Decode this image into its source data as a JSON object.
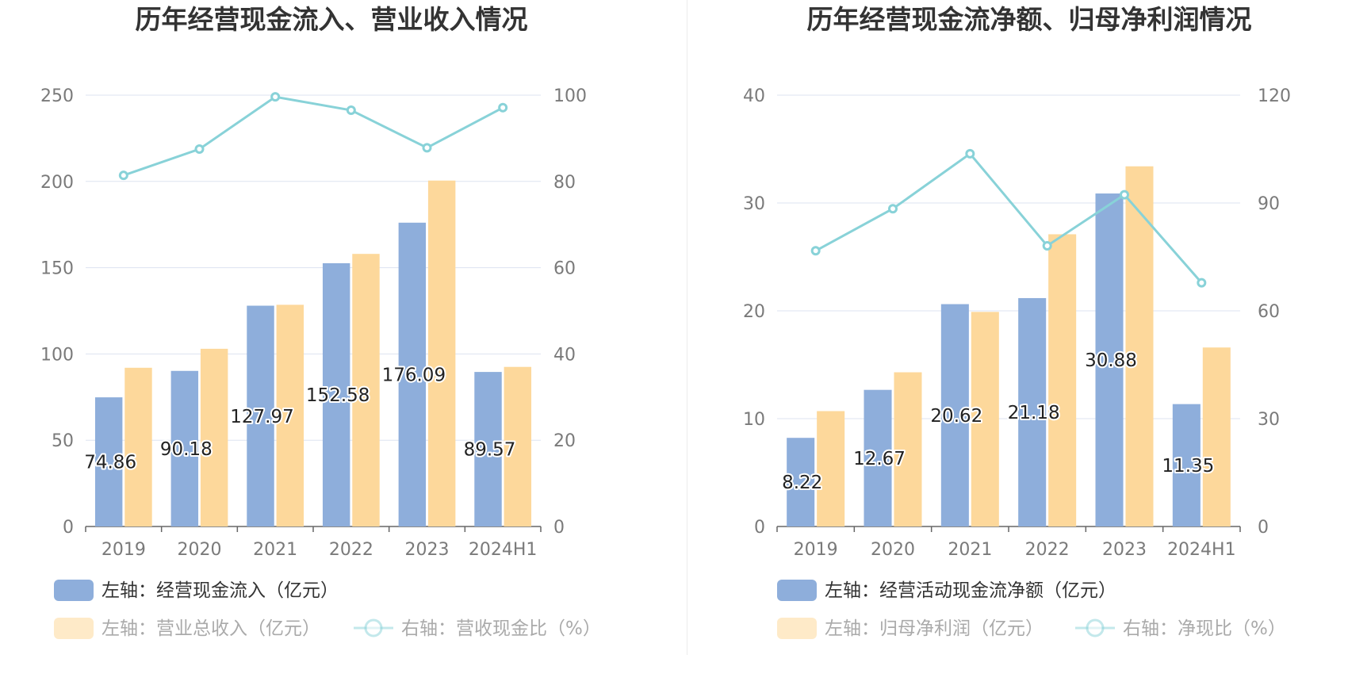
{
  "charts": [
    {
      "title": "历年经营现金流入、营业收入情况",
      "legend_labels": [
        "左轴：经营现金流入（亿元）",
        "左轴：营业总收入（亿元）",
        "右轴：营收现金比（%）"
      ]
    },
    {
      "title": "历年经营现金流净额、归母净利润情况",
      "legend_labels": [
        "左轴：经营活动现金流净额（亿元）",
        "左轴：归母净利润（亿元）",
        "右轴：净现比（%）"
      ]
    }
  ],
  "colors": {
    "bar1": "#8eaedb",
    "bar2": "#fdd89b",
    "line": "#88d2d8",
    "grid": "#dde3f0",
    "axis": "#666666"
  },
  "chart_data": [
    {
      "type": "bar",
      "title": "历年经营现金流入、营业收入情况",
      "categories": [
        "2019",
        "2020",
        "2021",
        "2022",
        "2023",
        "2024H1"
      ],
      "series": [
        {
          "name": "左轴：经营现金流入（亿元）",
          "type": "bar",
          "axis": "left",
          "values": [
            74.86,
            90.18,
            127.97,
            152.58,
            176.09,
            89.57
          ],
          "labels": [
            "74.86",
            "90.18",
            "127.97",
            "152.58",
            "176.09",
            "89.57"
          ]
        },
        {
          "name": "左轴：营业总收入（亿元）",
          "type": "bar",
          "axis": "left",
          "values": [
            92,
            103,
            128.5,
            158,
            200.5,
            92.5
          ]
        },
        {
          "name": "右轴：营收现金比（%）",
          "type": "line",
          "axis": "right",
          "values": [
            81.4,
            87.5,
            99.6,
            96.5,
            87.8,
            97.1
          ]
        }
      ],
      "left_axis": {
        "min": 0,
        "max": 250,
        "ticks": [
          "0",
          "50",
          "100",
          "150",
          "200",
          "250"
        ]
      },
      "right_axis": {
        "min": 0,
        "max": 100,
        "ticks": [
          "0",
          "20",
          "40",
          "60",
          "80",
          "100"
        ]
      },
      "grid": true,
      "legend_position": "bottom-left"
    },
    {
      "type": "bar",
      "title": "历年经营现金流净额、归母净利润情况",
      "categories": [
        "2019",
        "2020",
        "2021",
        "2022",
        "2023",
        "2024H1"
      ],
      "series": [
        {
          "name": "左轴：经营活动现金流净额（亿元）",
          "type": "bar",
          "axis": "left",
          "values": [
            8.22,
            12.67,
            20.62,
            21.18,
            30.88,
            11.35
          ],
          "labels": [
            "8.22",
            "12.67",
            "20.62",
            "21.18",
            "30.88",
            "11.35"
          ]
        },
        {
          "name": "左轴：归母净利润（亿元）",
          "type": "bar",
          "axis": "left",
          "values": [
            10.7,
            14.3,
            19.9,
            27.1,
            33.4,
            16.6
          ]
        },
        {
          "name": "右轴：净现比（%）",
          "type": "line",
          "axis": "right",
          "values": [
            76.7,
            88.4,
            103.7,
            78.1,
            92.3,
            67.8
          ]
        }
      ],
      "left_axis": {
        "min": 0,
        "max": 40,
        "ticks": [
          "0",
          "10",
          "20",
          "30",
          "40"
        ]
      },
      "right_axis": {
        "min": 0,
        "max": 120,
        "ticks": [
          "0",
          "30",
          "60",
          "90",
          "120"
        ]
      },
      "grid": true,
      "legend_position": "bottom-left"
    }
  ]
}
